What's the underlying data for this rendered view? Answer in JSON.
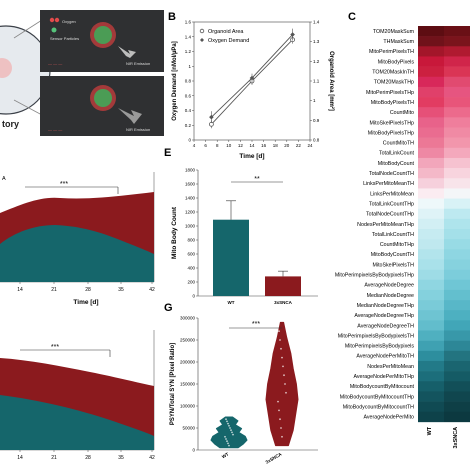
{
  "panels": {
    "b": "B",
    "c": "C",
    "e": "E",
    "g": "G"
  },
  "schematic": {
    "legend": [
      "Oxygen",
      "Sensor Particles"
    ],
    "caption_top": "NIR Emission",
    "caption_bottom": "NIR Emission",
    "fragment": "tory"
  },
  "colors": {
    "teal": "#15666b",
    "red": "#8b1a1e",
    "dark": "#2b2b2b"
  },
  "chart_data": [
    {
      "id": "B",
      "type": "line",
      "xlabel": "Time [d]",
      "ylabel": "Oxygen Demand [nMol/µPa]",
      "y2label": "Organoid Area [mm²]",
      "x": [
        7,
        14,
        21
      ],
      "xlim": [
        4,
        24
      ],
      "xticks": [
        "4",
        "6",
        "8",
        "10",
        "12",
        "14",
        "16",
        "18",
        "20",
        "22",
        "24"
      ],
      "ylim": [
        0,
        1.6
      ],
      "yticks": [
        "0",
        "0.2",
        "0.4",
        "0.6",
        "0.8",
        "1",
        "1.2",
        "1.4",
        "1.6"
      ],
      "y2lim": [
        0.8,
        1.4
      ],
      "y2ticks": [
        "0.8",
        "0.9",
        "1",
        "1.1",
        "1.2",
        "1.3",
        "1.4"
      ],
      "series": [
        {
          "name": "Organoid Area",
          "axis": "right",
          "values": [
            0.88,
            1.1,
            1.31
          ],
          "err": [
            0.02,
            0.02,
            0.02
          ]
        },
        {
          "name": "Oxygen Demand",
          "axis": "left",
          "values": [
            0.31,
            0.84,
            1.43
          ],
          "err": [
            0.08,
            0.06,
            0.08
          ]
        }
      ]
    },
    {
      "id": "E",
      "type": "bar",
      "ylabel": "Mito Body Count",
      "categories": [
        "WT",
        "3xSNCA"
      ],
      "values": [
        1090,
        280
      ],
      "err": [
        270,
        75
      ],
      "ylim": [
        0,
        1800
      ],
      "yticks": [
        "0",
        "200",
        "400",
        "600",
        "800",
        "1000",
        "1200",
        "1400",
        "1600",
        "1800"
      ],
      "significance": "**"
    },
    {
      "id": "G",
      "type": "violin",
      "ylabel": "PSYN/Total SYN [Pixel Ratio]",
      "categories": [
        "WT",
        "3xSNCA"
      ],
      "ylim": [
        0,
        300000
      ],
      "yticks": [
        "0",
        "50000",
        "100000",
        "150000",
        "200000",
        "250000",
        "300000"
      ],
      "ranges": [
        [
          5000,
          75000
        ],
        [
          10000,
          290000
        ]
      ],
      "significance": "***"
    },
    {
      "id": "D1",
      "type": "area",
      "xlabel": "Time [d]",
      "xticks": [
        "14",
        "21",
        "28",
        "35",
        "42"
      ],
      "legend_fragment": "A",
      "significance": "***"
    },
    {
      "id": "D2",
      "type": "area",
      "xticks": [
        "14",
        "21",
        "28",
        "35",
        "42"
      ],
      "significance": "***"
    },
    {
      "id": "C",
      "type": "heatmap",
      "columns": [
        "WT",
        "3xSNCA"
      ],
      "rows": [
        "TOM20MaskSum",
        "THMaskSum",
        "MitoPerimPixelsTH",
        "MitoBodyPixels",
        "TOM20MaskInTH",
        "TOM20MaskTHp",
        "MitoPerimPixelsTHp",
        "MitoBodyPixelsTH",
        "CountMito",
        "MitoSkelPixelsTHp",
        "MitoBodyPixelsTHp",
        "CountMitoTH",
        "TotalLinkCount",
        "MitoBodyCount",
        "TotalNodeCountTH",
        "LinksPerMitoMeanTH",
        "LinksPerMitoMean",
        "TotalLinkCountTHp",
        "TotalNodeCountTHp",
        "NodesPerMitoMeanTHp",
        "TotalLinkCountTH",
        "CountMitoTHp",
        "MitoBodyCountTH",
        "MitoSkelPixelsTH",
        "MitoPerimpixelsByBodypixelsTHp",
        "AverageNodeDegree",
        "MedianNodeDegree",
        "MedianNodeDegreeTHp",
        "AverageNodeDegreeTHp",
        "AverageNodeDegreeTH",
        "MitoPerimpixelsByBodypixelsTH",
        "MitoPerimpixelsByBodypixels",
        "AverageNodePerMitoTH",
        "NodesPerMitoMean",
        "AverageNodePerMitoTHp",
        "MitoBodycountByMitocount",
        "MitoBodycountByMitocountTHp",
        "MitoBodycountByMitocountTH",
        "AverageNodePerMito"
      ],
      "cells": [
        [
          "#5d0d12",
          "#6a1016"
        ],
        [
          "#70121a",
          "#7b141c"
        ],
        [
          "#a3162a",
          "#b01a30"
        ],
        [
          "#c8183a",
          "#d0254a"
        ],
        [
          "#cc2040",
          "#da3555"
        ],
        [
          "#d8285a",
          "#e14a70"
        ],
        [
          "#e0406a",
          "#e65580"
        ],
        [
          "#e23c62",
          "#e8557a"
        ],
        [
          "#e65078",
          "#ec6a8c"
        ],
        [
          "#e8628a",
          "#ef7e9c"
        ],
        [
          "#ea6c90",
          "#f08aa4"
        ],
        [
          "#ec7896",
          "#f296ac"
        ],
        [
          "#ee88a4",
          "#f4a8bc"
        ],
        [
          "#f2a6bb",
          "#f6c2d0"
        ],
        [
          "#f4b8c8",
          "#f8d4de"
        ],
        [
          "#f6d0dc",
          "#f8e4ea"
        ],
        [
          "#fbecf1",
          "#f4f6f8"
        ],
        [
          "#eef8fa",
          "#d8f2f6"
        ],
        [
          "#dff3f7",
          "#bde9f0"
        ],
        [
          "#d2eff4",
          "#aee4ec"
        ],
        [
          "#c6ebf1",
          "#a4e0e9"
        ],
        [
          "#bfe8ef",
          "#98dbe5"
        ],
        [
          "#b2e4ec",
          "#8ed6e2"
        ],
        [
          "#a9e1ea",
          "#86d2de"
        ],
        [
          "#9edce6",
          "#7ccddb"
        ],
        [
          "#8fd6e1",
          "#6fc6d5"
        ],
        [
          "#84d1dd",
          "#63bfce"
        ],
        [
          "#7acbd8",
          "#58b7c8"
        ],
        [
          "#6ec4d2",
          "#4db0c1"
        ],
        [
          "#62bdcc",
          "#41a6b8"
        ],
        [
          "#4fb0c0",
          "#3898a9"
        ],
        [
          "#3fa1b2",
          "#2d8797"
        ],
        [
          "#2d8e9e",
          "#237480"
        ],
        [
          "#227a88",
          "#1a6570"
        ],
        [
          "#1c6e7b",
          "#155b65"
        ],
        [
          "#165f6a",
          "#124f58"
        ],
        [
          "#13545e",
          "#10464e"
        ],
        [
          "#104a53",
          "#0e3f46"
        ],
        [
          "#0e424a",
          "#0c3940"
        ]
      ]
    }
  ]
}
